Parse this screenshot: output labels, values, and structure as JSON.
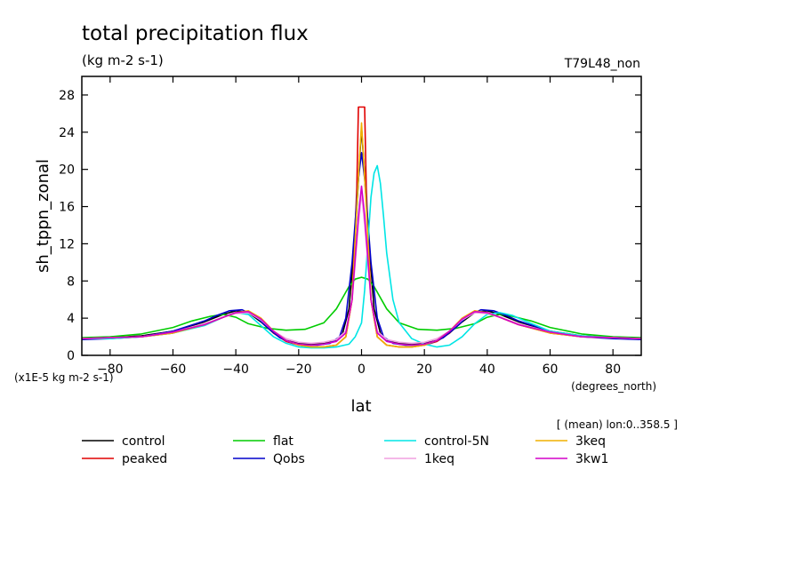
{
  "title": "total precipitation flux",
  "units": "(kg m-2 s-1)",
  "experiment": "T79L48_non",
  "scale_note": "(x1E-5 kg m-2 s-1)",
  "x_unit_note": "(degrees_north)",
  "mean_note": "[ (mean) lon:0..358.5 ]",
  "chart_data": {
    "type": "line",
    "xlabel": "lat",
    "ylabel": "sh_tppn_zonal",
    "xlim": [
      -89,
      89
    ],
    "ylim": [
      0,
      30
    ],
    "xticks": [
      -80,
      -60,
      -40,
      -20,
      0,
      20,
      40,
      60,
      80
    ],
    "xtick_labels": [
      "−80",
      "−60",
      "−40",
      "−20",
      "0",
      "20",
      "40",
      "60",
      "80"
    ],
    "yticks": [
      0,
      4,
      8,
      12,
      16,
      20,
      24,
      28
    ],
    "ytick_labels": [
      "0",
      "4",
      "8",
      "12",
      "16",
      "20",
      "24",
      "28"
    ],
    "grid": false,
    "legend_position": "bottom",
    "series": [
      {
        "name": "control",
        "color": "#000000",
        "x": [
          -89,
          -80,
          -70,
          -60,
          -50,
          -44,
          -40,
          -36,
          -32,
          -28,
          -24,
          -20,
          -16,
          -12,
          -8,
          -6,
          -4,
          -2,
          0,
          2,
          4,
          6,
          8,
          12,
          16,
          20,
          24,
          28,
          32,
          36,
          40,
          44,
          50,
          60,
          70,
          80,
          89
        ],
        "y": [
          1.8,
          1.9,
          2.1,
          2.6,
          3.6,
          4.4,
          4.8,
          4.6,
          3.6,
          2.4,
          1.6,
          1.3,
          1.2,
          1.3,
          1.6,
          2.4,
          5,
          13,
          24.5,
          14,
          5,
          2.4,
          1.6,
          1.3,
          1.2,
          1.3,
          1.6,
          2.4,
          3.6,
          4.6,
          4.8,
          4.4,
          3.6,
          2.6,
          2.1,
          1.9,
          1.8
        ]
      },
      {
        "name": "peaked",
        "color": "#e00000",
        "x": [
          -89,
          -80,
          -70,
          -60,
          -50,
          -44,
          -40,
          -36,
          -32,
          -28,
          -24,
          -20,
          -16,
          -12,
          -8,
          -5,
          -3,
          -1.5,
          -1,
          1,
          1.5,
          3,
          5,
          8,
          12,
          16,
          20,
          24,
          28,
          32,
          36,
          40,
          44,
          50,
          60,
          70,
          80,
          89
        ],
        "y": [
          1.8,
          1.9,
          2.0,
          2.4,
          3.3,
          4.1,
          4.6,
          4.7,
          3.8,
          2.4,
          1.5,
          1.1,
          0.9,
          0.9,
          1.1,
          2,
          6,
          18,
          26.7,
          26.7,
          18,
          6,
          2,
          1.1,
          0.9,
          0.9,
          1.1,
          1.5,
          2.4,
          3.8,
          4.7,
          4.6,
          4.1,
          3.3,
          2.4,
          2.0,
          1.9,
          1.8
        ]
      },
      {
        "name": "flat",
        "color": "#00cc00",
        "x": [
          -89,
          -80,
          -70,
          -60,
          -54,
          -48,
          -44,
          -40,
          -36,
          -30,
          -24,
          -18,
          -12,
          -8,
          -4,
          -2,
          0,
          2,
          4,
          8,
          12,
          18,
          24,
          30,
          36,
          40,
          44,
          48,
          54,
          60,
          70,
          80,
          89
        ],
        "y": [
          1.9,
          2.0,
          2.3,
          3.0,
          3.7,
          4.2,
          4.4,
          4.1,
          3.4,
          2.9,
          2.7,
          2.8,
          3.5,
          5,
          7.4,
          8.2,
          8.4,
          8.2,
          7.4,
          5,
          3.5,
          2.8,
          2.7,
          2.9,
          3.4,
          4.1,
          4.4,
          4.2,
          3.7,
          3.0,
          2.3,
          2.0,
          1.9
        ]
      },
      {
        "name": "Qobs",
        "color": "#0000cc",
        "x": [
          -89,
          -80,
          -70,
          -60,
          -50,
          -46,
          -42,
          -38,
          -34,
          -30,
          -26,
          -22,
          -18,
          -14,
          -10,
          -7,
          -5,
          -3,
          -1,
          0,
          1,
          3,
          5,
          7,
          10,
          14,
          18,
          22,
          26,
          30,
          34,
          38,
          42,
          46,
          50,
          60,
          70,
          80,
          89
        ],
        "y": [
          1.7,
          1.8,
          2.0,
          2.6,
          3.7,
          4.3,
          4.8,
          4.9,
          4.3,
          3.0,
          1.9,
          1.3,
          1.1,
          1.1,
          1.3,
          2,
          4,
          10,
          19,
          21.8,
          19,
          10,
          4,
          2,
          1.3,
          1.1,
          1.1,
          1.3,
          1.9,
          3.0,
          4.3,
          4.9,
          4.8,
          4.3,
          3.7,
          2.6,
          2.0,
          1.8,
          1.7
        ]
      },
      {
        "name": "control-5N",
        "color": "#00e5e5",
        "x": [
          -89,
          -80,
          -70,
          -60,
          -50,
          -44,
          -40,
          -36,
          -32,
          -28,
          -24,
          -20,
          -16,
          -12,
          -8,
          -4,
          -2,
          0,
          1,
          2,
          3,
          4,
          5,
          6,
          7,
          8,
          10,
          12,
          16,
          20,
          24,
          28,
          32,
          36,
          40,
          44,
          48,
          52,
          60,
          70,
          80,
          89
        ],
        "y": [
          1.8,
          1.8,
          2.0,
          2.4,
          3.2,
          4.1,
          4.6,
          4.4,
          3.2,
          2.0,
          1.3,
          0.9,
          0.8,
          0.8,
          0.9,
          1.2,
          2,
          3.5,
          7,
          12,
          17,
          19.6,
          20.4,
          18.5,
          15,
          11,
          6,
          3.5,
          1.8,
          1.2,
          0.9,
          1.1,
          2.0,
          3.4,
          4.4,
          4.6,
          4.3,
          3.7,
          2.6,
          2.1,
          1.9,
          1.8
        ]
      },
      {
        "name": "1keq",
        "color": "#f0a0e0",
        "x": [
          -89,
          -80,
          -70,
          -60,
          -50,
          -44,
          -40,
          -36,
          -32,
          -28,
          -24,
          -20,
          -16,
          -12,
          -8,
          -5,
          -3,
          -1,
          0,
          1,
          3,
          5,
          8,
          12,
          16,
          20,
          24,
          28,
          32,
          36,
          40,
          44,
          50,
          60,
          70,
          80,
          89
        ],
        "y": [
          1.8,
          1.9,
          2.0,
          2.5,
          3.4,
          4.1,
          4.5,
          4.6,
          3.8,
          2.6,
          1.8,
          1.4,
          1.3,
          1.4,
          1.7,
          2.6,
          6,
          14,
          17.5,
          14,
          6,
          2.6,
          1.7,
          1.4,
          1.3,
          1.4,
          1.8,
          2.6,
          3.8,
          4.6,
          4.5,
          4.1,
          3.4,
          2.5,
          2.0,
          1.9,
          1.8
        ]
      },
      {
        "name": "3keq",
        "color": "#f0b000",
        "x": [
          -89,
          -80,
          -70,
          -60,
          -50,
          -44,
          -40,
          -36,
          -32,
          -28,
          -24,
          -20,
          -16,
          -12,
          -8,
          -5,
          -3,
          -1.5,
          0,
          1.5,
          3,
          5,
          8,
          12,
          16,
          20,
          24,
          28,
          32,
          36,
          40,
          44,
          50,
          60,
          70,
          80,
          89
        ],
        "y": [
          1.8,
          1.9,
          2.0,
          2.4,
          3.3,
          4.1,
          4.6,
          4.8,
          4.0,
          2.6,
          1.6,
          1.1,
          0.9,
          0.9,
          1.1,
          2,
          6,
          16,
          25,
          16,
          6,
          2,
          1.1,
          0.9,
          0.9,
          1.1,
          1.6,
          2.6,
          4.0,
          4.8,
          4.6,
          4.1,
          3.3,
          2.4,
          2.0,
          1.9,
          1.8
        ]
      },
      {
        "name": "3kw1",
        "color": "#d400c8",
        "x": [
          -89,
          -80,
          -70,
          -60,
          -50,
          -44,
          -40,
          -36,
          -32,
          -28,
          -24,
          -20,
          -16,
          -12,
          -8,
          -5,
          -3,
          -1,
          0,
          1,
          3,
          5,
          8,
          12,
          16,
          20,
          24,
          28,
          32,
          36,
          40,
          44,
          50,
          60,
          70,
          80,
          89
        ],
        "y": [
          1.8,
          1.9,
          2.0,
          2.5,
          3.3,
          4.1,
          4.6,
          4.7,
          3.9,
          2.6,
          1.6,
          1.2,
          1.1,
          1.2,
          1.5,
          2.4,
          6,
          15,
          18.2,
          15,
          6,
          2.4,
          1.5,
          1.2,
          1.1,
          1.2,
          1.6,
          2.6,
          3.9,
          4.7,
          4.6,
          4.1,
          3.3,
          2.5,
          2.0,
          1.9,
          1.8
        ]
      }
    ]
  }
}
